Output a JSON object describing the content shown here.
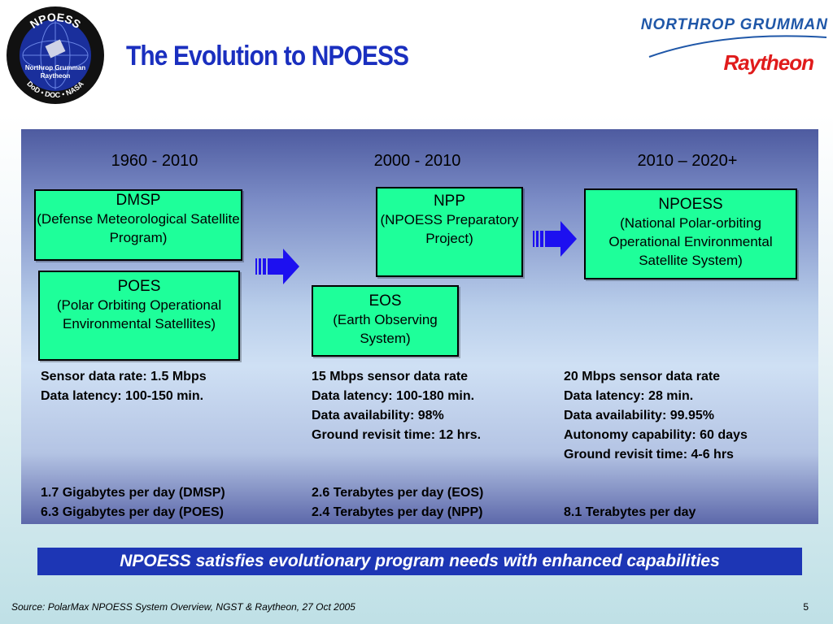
{
  "logo": {
    "top_text": "NPOESS",
    "line1": "Northrop Grumman",
    "line2": "Raytheon",
    "bottom_text": "DoD • DOC • NASA"
  },
  "title": "The Evolution to NPOESS",
  "corporate": {
    "northrop": "NORTHROP GRUMMAN",
    "raytheon": "Raytheon"
  },
  "eras": [
    "1960 - 2010",
    "2000 - 2010",
    "2010 – 2020+"
  ],
  "boxes": {
    "dmsp": {
      "name": "DMSP",
      "desc": "(Defense Meteorological Satellite Program)"
    },
    "poes": {
      "name": "POES",
      "desc": "(Polar Orbiting Operational Environmental Satellites)"
    },
    "npp": {
      "name": "NPP",
      "desc": "(NPOESS Preparatory Project)"
    },
    "eos": {
      "name": "EOS",
      "desc": "(Earth Observing System)"
    },
    "npoess": {
      "name": "NPOESS",
      "desc": "(National Polar-orbiting Operational Environmental Satellite System)"
    }
  },
  "stats": {
    "col1": [
      "Sensor data rate: 1.5 Mbps",
      "Data latency: 100-150 min."
    ],
    "col2": [
      "15 Mbps sensor data rate",
      "Data latency: 100-180 min.",
      "Data availability: 98%",
      "Ground revisit time: 12 hrs."
    ],
    "col3": [
      "20 Mbps sensor data rate",
      "Data latency: 28 min.",
      "Data availability: 99.95%",
      "Autonomy capability:  60 days",
      "Ground revisit time: 4-6 hrs"
    ]
  },
  "volumes": {
    "col1": [
      "1.7 Gigabytes per day (DMSP)",
      "6.3 Gigabytes per day (POES)"
    ],
    "col2": [
      "2.6 Terabytes per day (EOS)",
      "2.4 Terabytes per day (NPP)"
    ],
    "col3": [
      "8.1 Terabytes per day"
    ]
  },
  "banner": "NPOESS satisfies evolutionary program needs with enhanced capabilities",
  "source": "Source:  PolarMax NPOESS System Overview, NGST & Raytheon, 27 Oct 2005",
  "page_number": "5",
  "colors": {
    "box_fill": "#1eff9a",
    "title": "#1a2fbf",
    "banner": "#1d36b5",
    "arrow": "#1d10f0",
    "raytheon": "#e01b1b"
  }
}
